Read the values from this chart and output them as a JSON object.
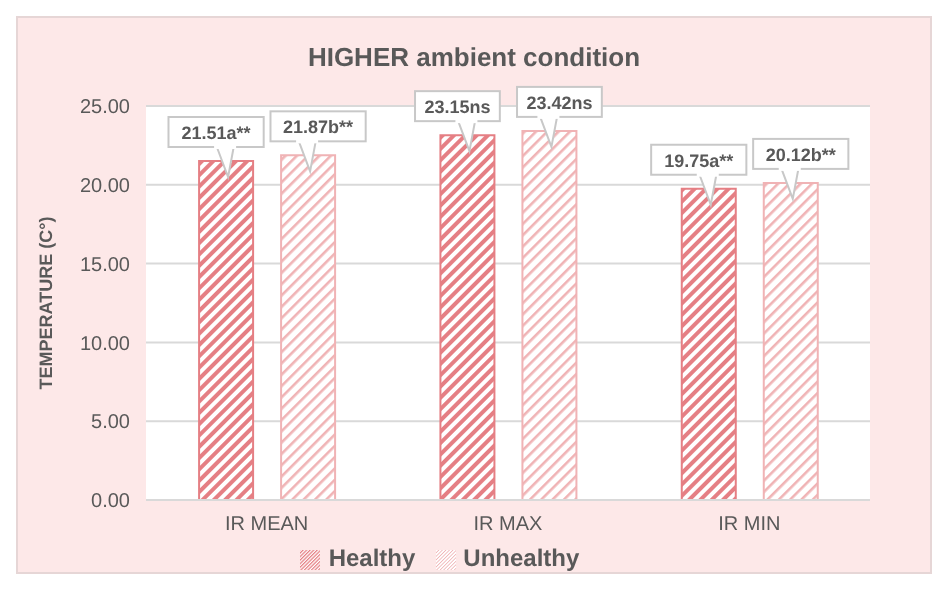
{
  "chart_data": {
    "type": "bar",
    "title": "HIGHER ambient condition",
    "ylabel": "TEMPERATURE (C°)",
    "categories": [
      "IR MEAN",
      "IR MAX",
      "IR MIN"
    ],
    "series": [
      {
        "name": "Healthy",
        "color": "#e57f84",
        "values": [
          21.51,
          23.15,
          19.75
        ],
        "value_labels": [
          "21.51a**",
          "23.15ns",
          "19.75a**"
        ]
      },
      {
        "name": "Unhealthy",
        "color": "#f0b3b5",
        "values": [
          21.87,
          23.42,
          20.12
        ],
        "value_labels": [
          "21.87b**",
          "23.42ns",
          "20.12b**"
        ]
      }
    ],
    "ylim": [
      0,
      25
    ],
    "yticks": [
      {
        "value": 0,
        "label": "0.00"
      },
      {
        "value": 5,
        "label": "5.00"
      },
      {
        "value": 10,
        "label": "10.00"
      },
      {
        "value": 15,
        "label": "15.00"
      },
      {
        "value": 20,
        "label": "20.00"
      },
      {
        "value": 25,
        "label": "25.00"
      }
    ],
    "grid": "y",
    "legend": "bottom"
  }
}
